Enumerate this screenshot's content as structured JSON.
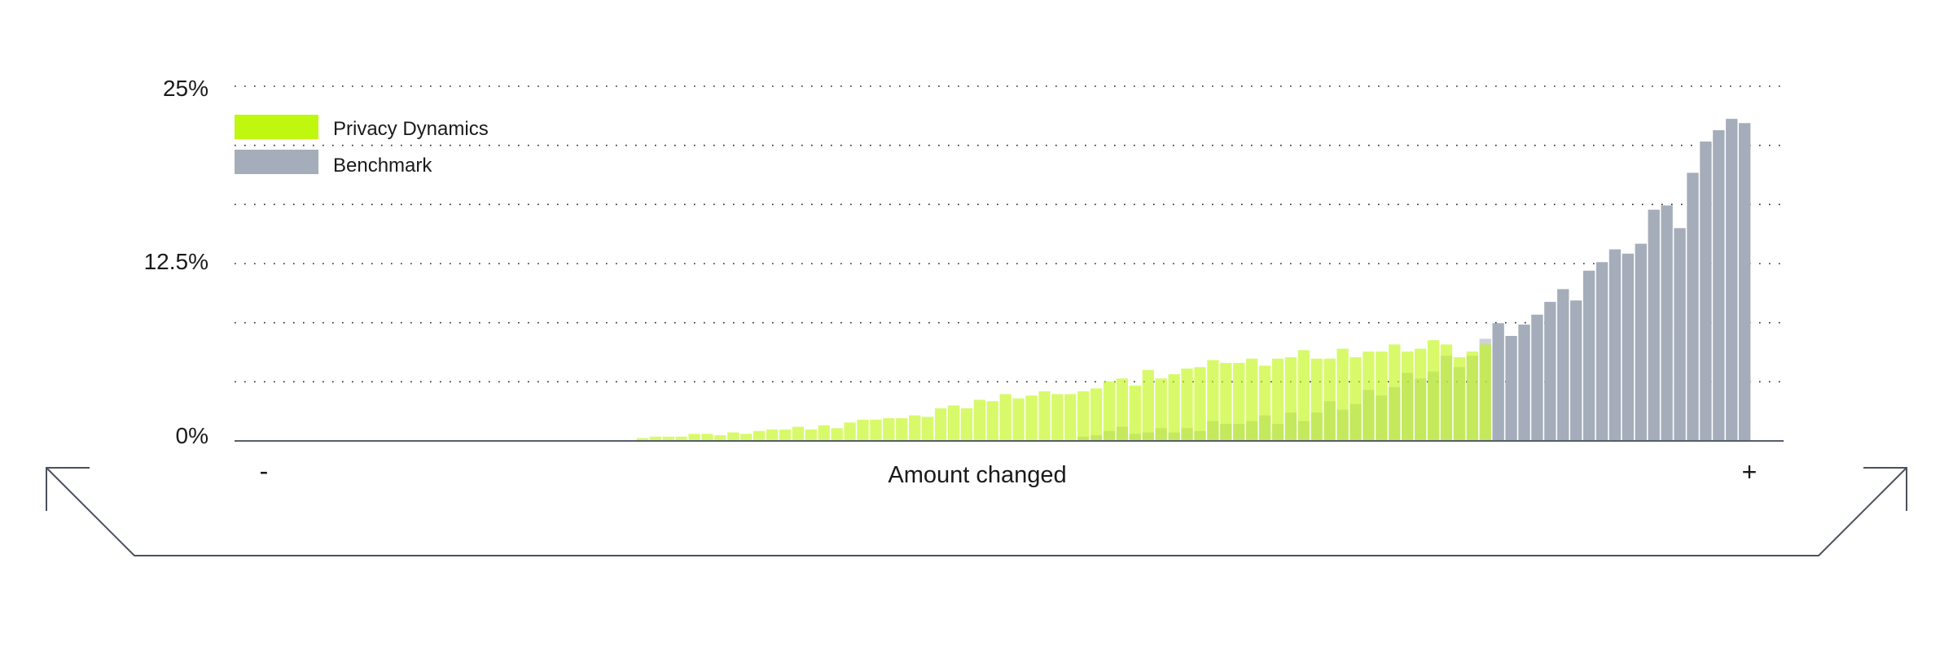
{
  "chart_data": {
    "type": "bar",
    "xlabel": "Amount changed",
    "x_end_labels": {
      "left": "-",
      "right": "+"
    },
    "ylabel": "",
    "yticks": [
      "25%",
      "12.5%",
      "0%"
    ],
    "ylim": [
      0,
      25
    ],
    "grid": true,
    "legend_placement": "top-left",
    "series": [
      {
        "name": "Privacy Dynamics",
        "color": "#c0f70f",
        "values": [
          0,
          0,
          0,
          0,
          0,
          0,
          0,
          0,
          0,
          0,
          0,
          0,
          0,
          0,
          0,
          0.2,
          0.3,
          0.3,
          0.3,
          0.5,
          0.5,
          0.4,
          0.6,
          0.5,
          0.7,
          0.8,
          0.8,
          1,
          0.8,
          1.1,
          0.9,
          1.3,
          1.5,
          1.5,
          1.6,
          1.6,
          1.8,
          1.7,
          2.3,
          2.5,
          2.3,
          2.9,
          2.8,
          3.3,
          3,
          3.2,
          3.5,
          3.3,
          3.3,
          3.5,
          3.7,
          4.2,
          4.4,
          3.9,
          5,
          4.4,
          4.7,
          5.1,
          5.2,
          5.7,
          5.5,
          5.5,
          5.8,
          5.3,
          5.8,
          5.9,
          6.4,
          5.8,
          5.8,
          6.5,
          5.9,
          6.3,
          6.3,
          6.8,
          6.3,
          6.5,
          7.1,
          6.8,
          5.9,
          6.3,
          6.8,
          0,
          0,
          0,
          0,
          0,
          0,
          0,
          0,
          0,
          0,
          0,
          0,
          0,
          0,
          0,
          0,
          0,
          0,
          0,
          0,
          0,
          0
        ]
      },
      {
        "name": "Benchmark",
        "color": "#a4adb9",
        "values": [
          0,
          0,
          0,
          0,
          0,
          0,
          0,
          0,
          0,
          0,
          0,
          0,
          0,
          0,
          0,
          0,
          0,
          0,
          0,
          0,
          0,
          0,
          0,
          0,
          0,
          0,
          0,
          0,
          0,
          0,
          0,
          0,
          0,
          0,
          0,
          0,
          0,
          0,
          0,
          0,
          0,
          0,
          0,
          0,
          0,
          0,
          0,
          0,
          0,
          0.3,
          0.4,
          0.7,
          1,
          0.5,
          0.6,
          0.9,
          0.6,
          0.9,
          0.7,
          1.4,
          1.2,
          1.2,
          1.4,
          1.8,
          1.2,
          2,
          1.4,
          2,
          2.8,
          2.2,
          2.6,
          3.6,
          3.2,
          3.8,
          4.8,
          4.4,
          4.9,
          6,
          5.2,
          6,
          7.2,
          8.3,
          7.4,
          8.2,
          8.9,
          9.8,
          10.7,
          9.9,
          12,
          12.6,
          13.5,
          13.2,
          13.9,
          16.3,
          16.6,
          15,
          18.9,
          21.1,
          21.9,
          22.7,
          22.4
        ]
      }
    ]
  }
}
